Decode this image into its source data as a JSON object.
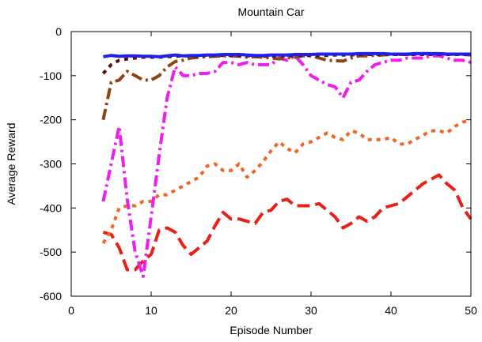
{
  "chart_data": {
    "type": "line",
    "title": "Mountain Car",
    "xlabel": "Episode Number",
    "ylabel": "Average Reward",
    "xlim": [
      0,
      50
    ],
    "ylim": [
      -600,
      0
    ],
    "xticks": [
      0,
      10,
      20,
      30,
      40,
      50
    ],
    "yticks": [
      0,
      -100,
      -200,
      -300,
      -400,
      -500,
      -600
    ],
    "grid": false,
    "series": [
      {
        "color": "#e8201a",
        "dash": "long-dash",
        "x": [
          4,
          5,
          6,
          7,
          8,
          9,
          10,
          11,
          12,
          13,
          14,
          15,
          16,
          17,
          18,
          19,
          20,
          21,
          22,
          23,
          24,
          25,
          26,
          27,
          28,
          29,
          30,
          31,
          32,
          33,
          34,
          35,
          36,
          37,
          38,
          39,
          40,
          41,
          42,
          43,
          44,
          45,
          46,
          47,
          48,
          49,
          50
        ],
        "y": [
          -455,
          -460,
          -490,
          -540,
          -540,
          -520,
          -505,
          -450,
          -445,
          -455,
          -485,
          -505,
          -490,
          -475,
          -440,
          -410,
          -425,
          -425,
          -430,
          -435,
          -410,
          -405,
          -385,
          -380,
          -395,
          -395,
          -395,
          -390,
          -405,
          -420,
          -445,
          -435,
          -420,
          -430,
          -420,
          -400,
          -395,
          -390,
          -375,
          -360,
          -345,
          -335,
          -325,
          -345,
          -360,
          -400,
          -425
        ]
      },
      {
        "color": "#f26522",
        "dash": "dot",
        "x": [
          4,
          5,
          6,
          7,
          8,
          9,
          10,
          11,
          12,
          13,
          14,
          15,
          16,
          17,
          18,
          19,
          20,
          21,
          22,
          23,
          24,
          25,
          26,
          27,
          28,
          29,
          30,
          31,
          32,
          33,
          34,
          35,
          36,
          37,
          38,
          39,
          40,
          41,
          42,
          43,
          44,
          45,
          46,
          47,
          48,
          49,
          50
        ],
        "y": [
          -480,
          -450,
          -400,
          -395,
          -395,
          -385,
          -385,
          -370,
          -370,
          -360,
          -350,
          -340,
          -330,
          -305,
          -300,
          -315,
          -315,
          -300,
          -330,
          -315,
          -295,
          -270,
          -250,
          -265,
          -275,
          -255,
          -250,
          -240,
          -230,
          -240,
          -245,
          -225,
          -230,
          -245,
          -245,
          -245,
          -240,
          -255,
          -255,
          -245,
          -235,
          -225,
          -225,
          -230,
          -215,
          -205,
          -200
        ]
      },
      {
        "color": "#ee1ef0",
        "dash": "dash-dot",
        "x": [
          4,
          5,
          6,
          7,
          8,
          9,
          10,
          11,
          12,
          13,
          14,
          15,
          16,
          17,
          18,
          19,
          20,
          21,
          22,
          23,
          24,
          25,
          26,
          27,
          28,
          29,
          30,
          31,
          32,
          33,
          34,
          35,
          36,
          37,
          38,
          39,
          40,
          41,
          42,
          43,
          44,
          45,
          46,
          47,
          48,
          49,
          50
        ],
        "y": [
          -385,
          -300,
          -215,
          -380,
          -500,
          -555,
          -420,
          -280,
          -150,
          -80,
          -100,
          -100,
          -95,
          -95,
          -90,
          -70,
          -70,
          -75,
          -70,
          -75,
          -75,
          -75,
          -60,
          -65,
          -55,
          -75,
          -100,
          -110,
          -120,
          -125,
          -150,
          -115,
          -110,
          -90,
          -75,
          -70,
          -65,
          -65,
          -60,
          -60,
          -60,
          -55,
          -55,
          -60,
          -65,
          -65,
          -70
        ]
      },
      {
        "color": "#8b4513",
        "dash": "dash-dot",
        "x": [
          4,
          5,
          6,
          7,
          8,
          9,
          10,
          11,
          12,
          13,
          14,
          15,
          16,
          17,
          18,
          19,
          20,
          21,
          22,
          23,
          24,
          25,
          26,
          27,
          28,
          29,
          30,
          31,
          32,
          33,
          34,
          35,
          36,
          37,
          38,
          39,
          40,
          41,
          42,
          43,
          44,
          45,
          46,
          47,
          48,
          49,
          50
        ],
        "y": [
          -200,
          -115,
          -110,
          -90,
          -100,
          -110,
          -110,
          -100,
          -80,
          -68,
          -65,
          -60,
          -58,
          -57,
          -56,
          -55,
          -55,
          -56,
          -58,
          -57,
          -58,
          -60,
          -62,
          -60,
          -58,
          -55,
          -55,
          -60,
          -65,
          -66,
          -67,
          -60,
          -55,
          -55,
          -54,
          -53,
          -52,
          -52,
          -52,
          -51,
          -50,
          -50,
          -50,
          -51,
          -52,
          -52,
          -53
        ]
      },
      {
        "color": "#5b0f00",
        "dash": "dot",
        "x": [
          4,
          5,
          6,
          7,
          8,
          9,
          10,
          11,
          12,
          13,
          14,
          15,
          16,
          17,
          18,
          19,
          20,
          21,
          22,
          23,
          24,
          25,
          26,
          27,
          28,
          29,
          30,
          31,
          32,
          33,
          34,
          35,
          36,
          37,
          38,
          39,
          40,
          41,
          42,
          43,
          44,
          45,
          46,
          47,
          48,
          49,
          50
        ],
        "y": [
          -95,
          -75,
          -65,
          -62,
          -60,
          -58,
          -58,
          -58,
          -57,
          -56,
          -55,
          -55,
          -55,
          -54,
          -54,
          -54,
          -54,
          -54,
          -55,
          -55,
          -56,
          -56,
          -55,
          -55,
          -55,
          -54,
          -54,
          -54,
          -54,
          -53,
          -53,
          -53,
          -52,
          -52,
          -52,
          -52,
          -52,
          -52,
          -52,
          -52,
          -52,
          -52,
          -52,
          -52,
          -52,
          -52,
          -52
        ]
      },
      {
        "color": "#1f1ff0",
        "dash": "solid",
        "x": [
          4,
          5,
          6,
          7,
          8,
          9,
          10,
          11,
          12,
          13,
          14,
          15,
          16,
          17,
          18,
          19,
          20,
          21,
          22,
          23,
          24,
          25,
          26,
          27,
          28,
          29,
          30,
          31,
          32,
          33,
          34,
          35,
          36,
          37,
          38,
          39,
          40,
          41,
          42,
          43,
          44,
          45,
          46,
          47,
          48,
          49,
          50
        ],
        "y": [
          -57,
          -54,
          -56,
          -55,
          -55,
          -56,
          -56,
          -57,
          -55,
          -53,
          -55,
          -54,
          -54,
          -53,
          -53,
          -52,
          -52,
          -52,
          -53,
          -54,
          -54,
          -53,
          -53,
          -53,
          -52,
          -52,
          -52,
          -51,
          -51,
          -51,
          -51,
          -51,
          -50,
          -50,
          -50,
          -50,
          -51,
          -51,
          -51,
          -50,
          -50,
          -50,
          -50,
          -51,
          -51,
          -51,
          -51
        ]
      }
    ]
  }
}
